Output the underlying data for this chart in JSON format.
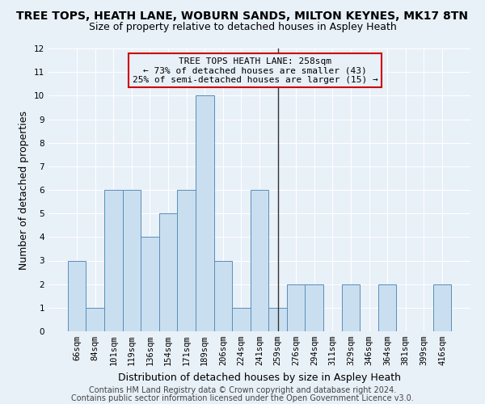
{
  "title": "TREE TOPS, HEATH LANE, WOBURN SANDS, MILTON KEYNES, MK17 8TN",
  "subtitle": "Size of property relative to detached houses in Aspley Heath",
  "xlabel": "Distribution of detached houses by size in Aspley Heath",
  "ylabel": "Number of detached properties",
  "categories": [
    "66sqm",
    "84sqm",
    "101sqm",
    "119sqm",
    "136sqm",
    "154sqm",
    "171sqm",
    "189sqm",
    "206sqm",
    "224sqm",
    "241sqm",
    "259sqm",
    "276sqm",
    "294sqm",
    "311sqm",
    "329sqm",
    "346sqm",
    "364sqm",
    "381sqm",
    "399sqm",
    "416sqm"
  ],
  "values": [
    3,
    1,
    6,
    6,
    4,
    5,
    6,
    10,
    3,
    1,
    6,
    1,
    2,
    2,
    0,
    2,
    0,
    2,
    0,
    0,
    2
  ],
  "bar_color": "#c9dff0",
  "bar_edge_color": "#5b8db8",
  "vline_color": "#333333",
  "vline_pos": 11,
  "annotation_text": "TREE TOPS HEATH LANE: 258sqm\n← 73% of detached houses are smaller (43)\n25% of semi-detached houses are larger (15) →",
  "annotation_box_edgecolor": "#cc0000",
  "ylim": [
    0,
    12
  ],
  "yticks": [
    0,
    1,
    2,
    3,
    4,
    5,
    6,
    7,
    8,
    9,
    10,
    11,
    12
  ],
  "footnote1": "Contains HM Land Registry data © Crown copyright and database right 2024.",
  "footnote2": "Contains public sector information licensed under the Open Government Licence v3.0.",
  "background_color": "#e8f0f8",
  "grid_color": "#ffffff",
  "title_fontsize": 10,
  "subtitle_fontsize": 9,
  "ylabel_fontsize": 9,
  "xlabel_fontsize": 9,
  "tick_fontsize": 7.5,
  "annotation_fontsize": 8,
  "footnote_fontsize": 7
}
